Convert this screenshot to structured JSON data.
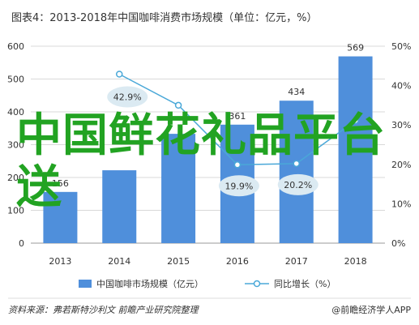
{
  "chart_data": {
    "type": "bar",
    "title": "图表4：2013-2018年中国咖啡消费市场规模（单位：亿元，%）",
    "categories": [
      "2013",
      "2014",
      "2015",
      "2016",
      "2017",
      "2018"
    ],
    "series": [
      {
        "name": "中国咖啡市场规模（亿元）",
        "type": "bar",
        "axis": "left",
        "values": [
          156,
          222,
          333,
          361,
          434,
          569
        ],
        "value_labels": [
          "156",
          "",
          "",
          "361",
          "434",
          "569"
        ]
      },
      {
        "name": "同比增长（%）",
        "type": "line",
        "axis": "right",
        "values": [
          null,
          42.9,
          35.0,
          19.9,
          20.2,
          31.1
        ],
        "value_labels": [
          "",
          "42.9%",
          "",
          "19.9%",
          "20.2%",
          ""
        ]
      }
    ],
    "y_left": {
      "min": 0,
      "max": 600,
      "ticks": [
        "0",
        "100",
        "200",
        "300",
        "400",
        "500",
        "600"
      ]
    },
    "y_right": {
      "min": 0,
      "max": 50,
      "ticks": [
        "0%",
        "10%",
        "20%",
        "30%",
        "40%",
        "50%"
      ]
    },
    "grid": true,
    "legend_position": "bottom",
    "colors": {
      "bar": "#4f8fdb",
      "line": "#4aa8d8",
      "bubble": "#dbeaf2",
      "axis_text": "#333333",
      "grid": "#d9d9d9"
    }
  },
  "source_note": "资料来源：弗若斯特沙利文 前瞻产业研究院整理",
  "brand": "@前瞻经济学人APP",
  "overlay_text": "中国鲜花礼品平台送"
}
